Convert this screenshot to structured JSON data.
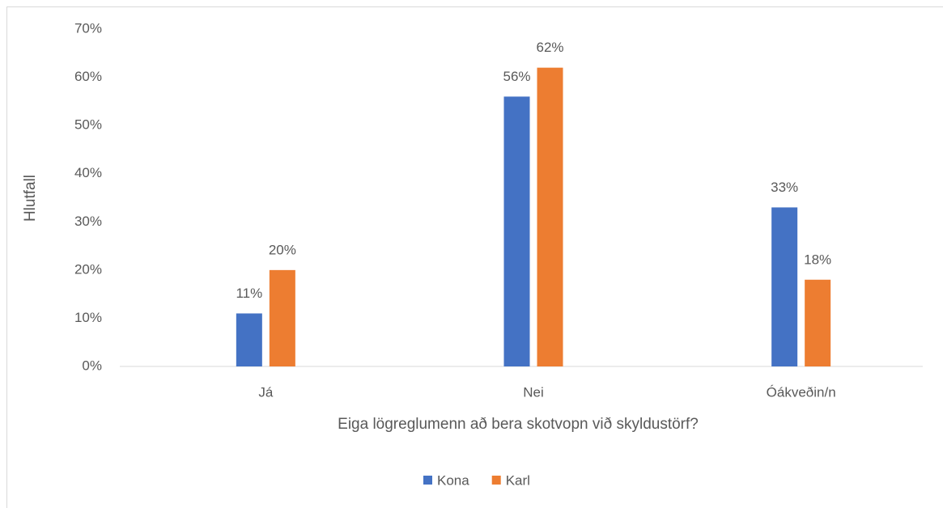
{
  "chart_data": {
    "type": "bar",
    "categories": [
      "Já",
      "Nei",
      "Óákveðin/n"
    ],
    "series": [
      {
        "name": "Kona",
        "color": "#4472c4",
        "values": [
          11,
          56,
          33
        ],
        "value_labels": [
          "11%",
          "56%",
          "33%"
        ]
      },
      {
        "name": "Karl",
        "color": "#ed7d31",
        "values": [
          20,
          62,
          18
        ],
        "value_labels": [
          "20%",
          "62%",
          "18%"
        ]
      }
    ],
    "xlabel": "Eiga lögreglumenn að bera skotvopn við skyldustörf?",
    "ylabel": "Hlutfall",
    "ylim": [
      0,
      70
    ],
    "yticks": [
      {
        "value": 0,
        "label": "0%"
      },
      {
        "value": 10,
        "label": "10%"
      },
      {
        "value": 20,
        "label": "20%"
      },
      {
        "value": 30,
        "label": "30%"
      },
      {
        "value": 40,
        "label": "40%"
      },
      {
        "value": 50,
        "label": "50%"
      },
      {
        "value": 60,
        "label": "60%"
      },
      {
        "value": 70,
        "label": "70%"
      }
    ],
    "grid": false,
    "legend": "bottom"
  }
}
